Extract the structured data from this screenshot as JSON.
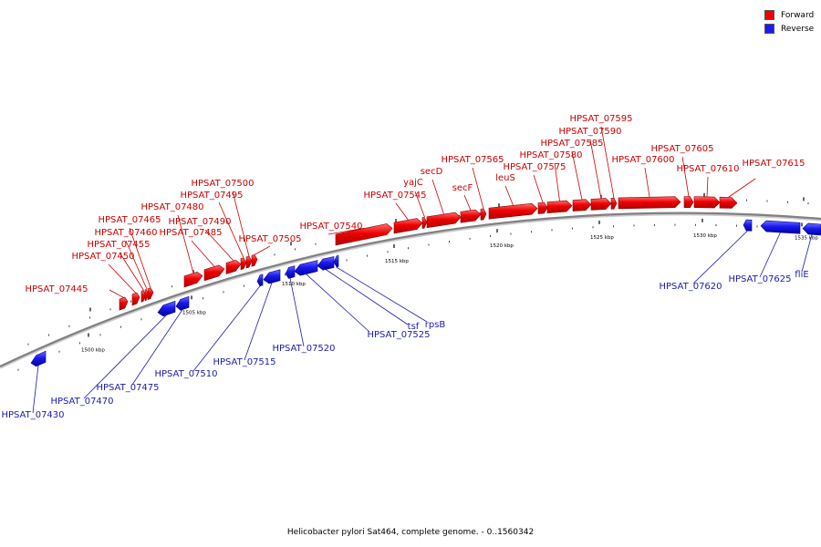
{
  "caption": "Helicobacter pylori Sat464, complete genome. - 0..1560342",
  "legend": [
    {
      "label": "Forward",
      "color": "#ee0000"
    },
    {
      "label": "Reverse",
      "color": "#1a1aee"
    }
  ],
  "colors": {
    "forward": "#ee0000",
    "reverse": "#1a1aee",
    "forward_label": "#cc0000",
    "reverse_label": "#1a1ab4",
    "backbone": "#808080"
  },
  "tick_labels": [
    "1500 kbp",
    "1505 kbp",
    "1510 kbp",
    "1515 kbp",
    "1520 kbp",
    "1525 kbp",
    "1530 kbp",
    "1535 kbp"
  ],
  "genes": [
    {
      "label": "HPSAT_07445",
      "strand": "forward"
    },
    {
      "label": "HPSAT_07450",
      "strand": "forward"
    },
    {
      "label": "HPSAT_07455",
      "strand": "forward"
    },
    {
      "label": "HPSAT_07460",
      "strand": "forward"
    },
    {
      "label": "HPSAT_07465",
      "strand": "forward"
    },
    {
      "label": "HPSAT_07480",
      "strand": "forward"
    },
    {
      "label": "HPSAT_07485",
      "strand": "forward"
    },
    {
      "label": "HPSAT_07490",
      "strand": "forward"
    },
    {
      "label": "HPSAT_07495",
      "strand": "forward"
    },
    {
      "label": "HPSAT_07500",
      "strand": "forward"
    },
    {
      "label": "HPSAT_07505",
      "strand": "forward"
    },
    {
      "label": "HPSAT_07540",
      "strand": "forward"
    },
    {
      "label": "HPSAT_07545",
      "strand": "forward"
    },
    {
      "label": "yajC",
      "strand": "forward"
    },
    {
      "label": "secD",
      "strand": "forward"
    },
    {
      "label": "secF",
      "strand": "forward"
    },
    {
      "label": "HPSAT_07565",
      "strand": "forward"
    },
    {
      "label": "leuS",
      "strand": "forward"
    },
    {
      "label": "HPSAT_07575",
      "strand": "forward"
    },
    {
      "label": "HPSAT_07580",
      "strand": "forward"
    },
    {
      "label": "HPSAT_07585",
      "strand": "forward"
    },
    {
      "label": "HPSAT_07590",
      "strand": "forward"
    },
    {
      "label": "HPSAT_07595",
      "strand": "forward"
    },
    {
      "label": "HPSAT_07600",
      "strand": "forward"
    },
    {
      "label": "HPSAT_07605",
      "strand": "forward"
    },
    {
      "label": "HPSAT_07610",
      "strand": "forward"
    },
    {
      "label": "HPSAT_07615",
      "strand": "forward"
    },
    {
      "label": "HPSAT_07430",
      "strand": "reverse"
    },
    {
      "label": "HPSAT_07470",
      "strand": "reverse"
    },
    {
      "label": "HPSAT_07475",
      "strand": "reverse"
    },
    {
      "label": "HPSAT_07510",
      "strand": "reverse"
    },
    {
      "label": "HPSAT_07515",
      "strand": "reverse"
    },
    {
      "label": "HPSAT_07520",
      "strand": "reverse"
    },
    {
      "label": "HPSAT_07525",
      "strand": "reverse"
    },
    {
      "label": "tsf",
      "strand": "reverse"
    },
    {
      "label": "rpsB",
      "strand": "reverse"
    },
    {
      "label": "HPSAT_07620",
      "strand": "reverse"
    },
    {
      "label": "HPSAT_07625",
      "strand": "reverse"
    },
    {
      "label": "fliE",
      "strand": "reverse"
    }
  ]
}
